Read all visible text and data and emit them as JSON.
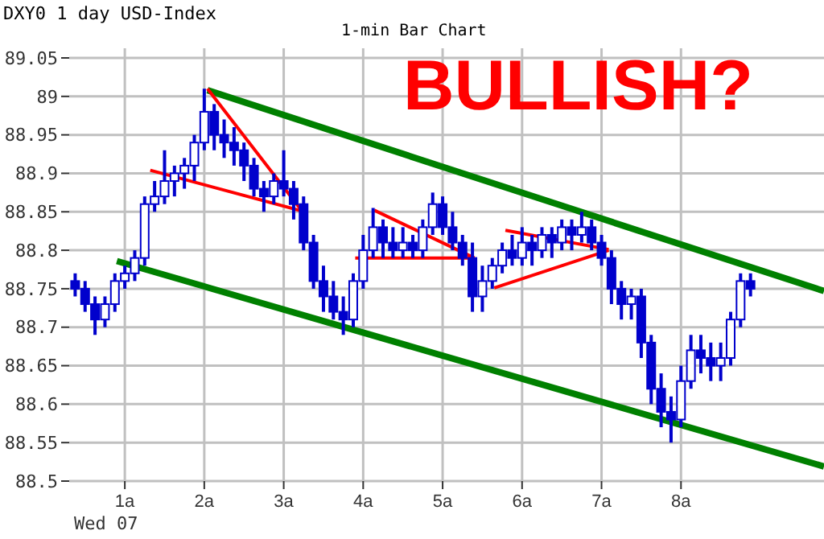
{
  "chart_data": {
    "type": "candlestick",
    "title": "DXY0 1 day USD-Index",
    "subtitle": "1-min Bar Chart",
    "annotations": [
      "Wed 07",
      "BULLISH?"
    ],
    "color": "#0000cc",
    "grid": true,
    "xlim": [
      0.3,
      9.8
    ],
    "xticks": [
      {
        "value": 1,
        "label": "1a"
      },
      {
        "value": 2,
        "label": "2a"
      },
      {
        "value": 3,
        "label": "3a"
      },
      {
        "value": 4,
        "label": "4a"
      },
      {
        "value": 5,
        "label": "5a"
      },
      {
        "value": 6,
        "label": "6a"
      },
      {
        "value": 7,
        "label": "7a"
      },
      {
        "value": 8,
        "label": "8a"
      }
    ],
    "ylim": [
      88.5,
      89.05
    ],
    "yticks": [
      88.5,
      88.55,
      88.6,
      88.65,
      88.7,
      88.75,
      88.8,
      88.85,
      88.9,
      88.95,
      89,
      89.05
    ],
    "x": [
      0.375,
      0.5,
      0.625,
      0.75,
      0.875,
      1,
      1.125,
      1.25,
      1.375,
      1.5,
      1.625,
      1.75,
      1.875,
      2,
      2.125,
      2.25,
      2.375,
      2.5,
      2.625,
      2.75,
      2.875,
      3,
      3.125,
      3.25,
      3.375,
      3.5,
      3.625,
      3.75,
      3.875,
      4,
      4.125,
      4.25,
      4.375,
      4.5,
      4.625,
      4.75,
      4.875,
      5,
      5.125,
      5.25,
      5.375,
      5.5,
      5.625,
      5.75,
      5.875,
      6,
      6.125,
      6.25,
      6.375,
      6.5,
      6.625,
      6.75,
      6.875,
      7,
      7.125,
      7.25,
      7.375,
      7.5,
      7.625,
      7.75,
      7.875,
      8,
      8.125,
      8.25,
      8.375,
      8.5,
      8.625,
      8.75,
      8.875
    ],
    "ohlc": [
      [
        88.76,
        88.77,
        88.74,
        88.75
      ],
      [
        88.75,
        88.76,
        88.72,
        88.73
      ],
      [
        88.73,
        88.74,
        88.69,
        88.71
      ],
      [
        88.71,
        88.74,
        88.7,
        88.73
      ],
      [
        88.73,
        88.77,
        88.72,
        88.76
      ],
      [
        88.76,
        88.78,
        88.75,
        88.77
      ],
      [
        88.77,
        88.8,
        88.76,
        88.79
      ],
      [
        88.79,
        88.87,
        88.78,
        88.86
      ],
      [
        88.86,
        88.89,
        88.85,
        88.87
      ],
      [
        88.87,
        88.93,
        88.86,
        88.89
      ],
      [
        88.89,
        88.91,
        88.87,
        88.9
      ],
      [
        88.9,
        88.92,
        88.88,
        88.91
      ],
      [
        88.91,
        88.95,
        88.89,
        88.94
      ],
      [
        88.94,
        89.01,
        88.93,
        88.98
      ],
      [
        88.98,
        88.99,
        88.93,
        88.95
      ],
      [
        88.95,
        88.97,
        88.92,
        88.94
      ],
      [
        88.94,
        88.96,
        88.91,
        88.93
      ],
      [
        88.93,
        88.94,
        88.89,
        88.91
      ],
      [
        88.91,
        88.92,
        88.87,
        88.88
      ],
      [
        88.88,
        88.89,
        88.85,
        88.87
      ],
      [
        88.87,
        88.9,
        88.86,
        88.89
      ],
      [
        88.89,
        88.93,
        88.87,
        88.88
      ],
      [
        88.88,
        88.89,
        88.84,
        88.86
      ],
      [
        88.86,
        88.87,
        88.8,
        88.81
      ],
      [
        88.81,
        88.82,
        88.75,
        88.76
      ],
      [
        88.76,
        88.78,
        88.72,
        88.74
      ],
      [
        88.74,
        88.76,
        88.71,
        88.72
      ],
      [
        88.72,
        88.74,
        88.69,
        88.71
      ],
      [
        88.71,
        88.77,
        88.7,
        88.76
      ],
      [
        88.76,
        88.82,
        88.75,
        88.8
      ],
      [
        88.8,
        88.855,
        88.79,
        88.83
      ],
      [
        88.83,
        88.84,
        88.79,
        88.81
      ],
      [
        88.81,
        88.83,
        88.79,
        88.8
      ],
      [
        88.8,
        88.83,
        88.79,
        88.81
      ],
      [
        88.81,
        88.82,
        88.79,
        88.8
      ],
      [
        88.8,
        88.84,
        88.79,
        88.83
      ],
      [
        88.83,
        88.875,
        88.82,
        88.86
      ],
      [
        88.86,
        88.87,
        88.82,
        88.83
      ],
      [
        88.83,
        88.85,
        88.8,
        88.81
      ],
      [
        88.81,
        88.82,
        88.78,
        88.79
      ],
      [
        88.79,
        88.81,
        88.72,
        88.74
      ],
      [
        88.74,
        88.78,
        88.72,
        88.76
      ],
      [
        88.76,
        88.79,
        88.75,
        88.78
      ],
      [
        88.78,
        88.81,
        88.77,
        88.8
      ],
      [
        88.8,
        88.82,
        88.78,
        88.79
      ],
      [
        88.79,
        88.83,
        88.78,
        88.81
      ],
      [
        88.81,
        88.82,
        88.78,
        88.8
      ],
      [
        88.8,
        88.83,
        88.79,
        88.82
      ],
      [
        88.82,
        88.83,
        88.79,
        88.81
      ],
      [
        88.81,
        88.84,
        88.8,
        88.83
      ],
      [
        88.83,
        88.84,
        88.8,
        88.82
      ],
      [
        88.82,
        88.85,
        88.81,
        88.83
      ],
      [
        88.83,
        88.84,
        88.8,
        88.81
      ],
      [
        88.81,
        88.82,
        88.78,
        88.79
      ],
      [
        88.79,
        88.8,
        88.73,
        88.75
      ],
      [
        88.75,
        88.76,
        88.71,
        88.73
      ],
      [
        88.73,
        88.75,
        88.71,
        88.74
      ],
      [
        88.74,
        88.75,
        88.66,
        88.68
      ],
      [
        88.68,
        88.69,
        88.6,
        88.62
      ],
      [
        88.62,
        88.64,
        88.57,
        88.59
      ],
      [
        88.59,
        88.61,
        88.55,
        88.58
      ],
      [
        88.58,
        88.65,
        88.57,
        88.63
      ],
      [
        88.63,
        88.69,
        88.62,
        88.67
      ],
      [
        88.67,
        88.69,
        88.64,
        88.66
      ],
      [
        88.66,
        88.68,
        88.63,
        88.65
      ],
      [
        88.65,
        88.68,
        88.63,
        88.66
      ],
      [
        88.66,
        88.72,
        88.65,
        88.71
      ],
      [
        88.71,
        88.77,
        88.7,
        88.76
      ],
      [
        88.76,
        88.77,
        88.74,
        88.75
      ]
    ],
    "series": [
      {
        "type": "line",
        "color": "#008000",
        "x": [
          2.04,
          9.8
        ],
        "values": [
          89.008,
          88.747
        ]
      },
      {
        "type": "line",
        "color": "#008000",
        "x": [
          0.9,
          9.8
        ],
        "values": [
          88.786,
          88.519
        ]
      },
      {
        "type": "line",
        "color": "#ff0000",
        "x": [
          1.32,
          3.23
        ],
        "values": [
          88.904,
          88.851
        ]
      },
      {
        "type": "line",
        "color": "#ff0000",
        "x": [
          2.04,
          3.23
        ],
        "values": [
          89.01,
          88.851
        ]
      },
      {
        "type": "line",
        "color": "#ff0000",
        "x": [
          3.9,
          5.4
        ],
        "values": [
          88.79,
          88.79
        ]
      },
      {
        "type": "line",
        "color": "#ff0000",
        "x": [
          4.14,
          5.4
        ],
        "values": [
          88.852,
          88.79
        ]
      },
      {
        "type": "line",
        "color": "#ff0000",
        "x": [
          5.79,
          7.09
        ],
        "values": [
          88.826,
          88.801
        ]
      },
      {
        "type": "line",
        "color": "#ff0000",
        "x": [
          5.65,
          7.09
        ],
        "values": [
          88.751,
          88.8
        ]
      }
    ]
  }
}
